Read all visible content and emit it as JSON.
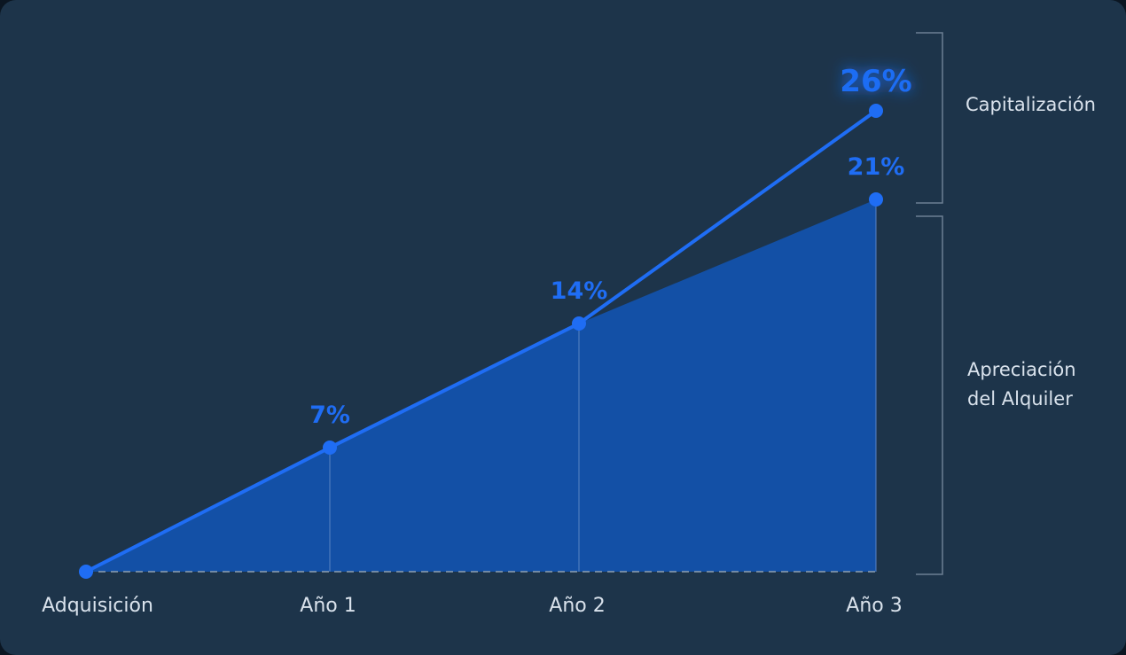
{
  "chart_data": {
    "type": "area",
    "categories": [
      "Adquisición",
      "Año 1",
      "Año 2",
      "Año 3"
    ],
    "series": [
      {
        "name": "Apreciación del Alquiler",
        "values": [
          0,
          7,
          14,
          21
        ],
        "data_labels": [
          "",
          "7%",
          "14%",
          "21%"
        ]
      },
      {
        "name": "Capitalización",
        "values": [
          0,
          7,
          14,
          26
        ],
        "data_labels": [
          "",
          "",
          "",
          "26%"
        ]
      }
    ],
    "title": "",
    "xlabel": "",
    "ylabel": "",
    "ylim": [
      0,
      26
    ],
    "grid": false,
    "brackets": [
      {
        "label": "Capitalización",
        "range": [
          21,
          26
        ]
      },
      {
        "label_lines": [
          "Apreciación",
          "del Alquiler"
        ],
        "range": [
          0,
          21
        ]
      }
    ],
    "colors": {
      "background": "#1d344a",
      "line": "#1f6df4",
      "area_fill": "#1350a6",
      "text": "#d9e2ec",
      "bracket": "#6c7f93",
      "baseline": "#8fa0b1"
    }
  }
}
